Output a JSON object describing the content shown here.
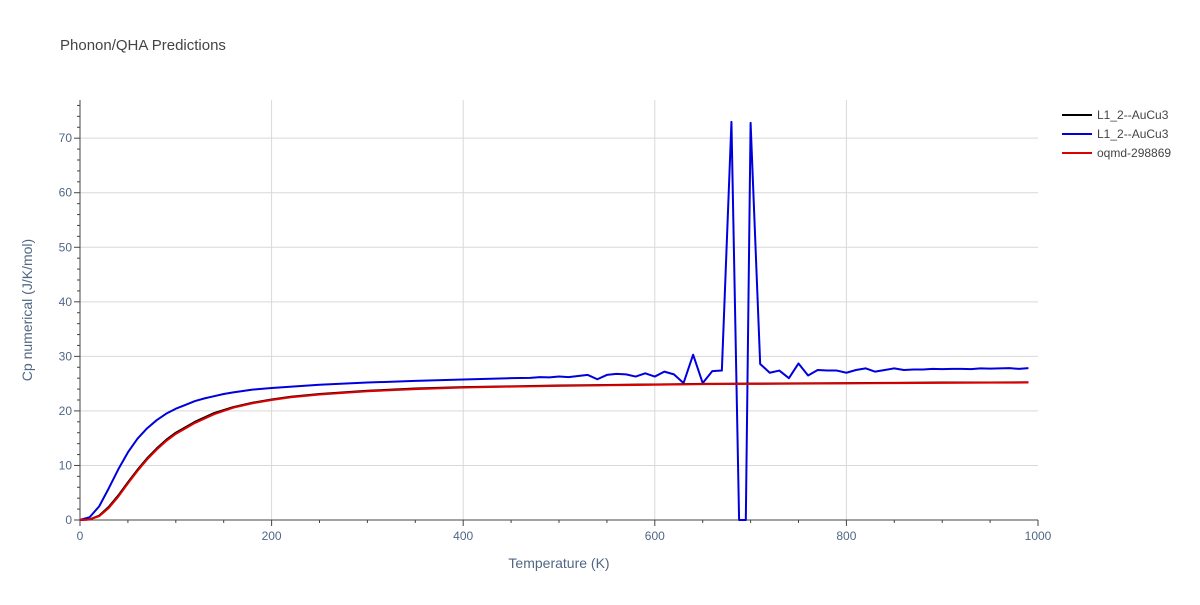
{
  "chart_data": {
    "type": "line",
    "title": "Phonon/QHA Predictions",
    "xlabel": "Temperature (K)",
    "ylabel": "Cp numerical (J/K/mol)",
    "xlim": [
      0,
      1000
    ],
    "ylim": [
      0,
      77
    ],
    "x_ticks": [
      0,
      200,
      400,
      600,
      800,
      1000
    ],
    "y_ticks": [
      0,
      10,
      20,
      30,
      40,
      50,
      60,
      70
    ],
    "grid": true,
    "legend_position": "top-right",
    "series": [
      {
        "name": "L1_2--AuCu3",
        "color": "#000000",
        "x": [
          0,
          10,
          20,
          30,
          40,
          50,
          60,
          70,
          80,
          90,
          100,
          120,
          140,
          160,
          180,
          200,
          220,
          250,
          300,
          350,
          400,
          450,
          500,
          550,
          600,
          650,
          700,
          750,
          800,
          850,
          900,
          950,
          990
        ],
        "y": [
          0,
          0.1,
          0.8,
          2.4,
          4.5,
          6.9,
          9.2,
          11.3,
          13.1,
          14.7,
          16.0,
          18.0,
          19.6,
          20.7,
          21.5,
          22.1,
          22.6,
          23.1,
          23.7,
          24.1,
          24.35,
          24.5,
          24.65,
          24.75,
          24.85,
          24.95,
          25.0,
          25.05,
          25.1,
          25.15,
          25.2,
          25.22,
          25.25
        ]
      },
      {
        "name": "L1_2--AuCu3",
        "color": "#0000dd",
        "x": [
          0,
          10,
          20,
          30,
          40,
          50,
          60,
          70,
          80,
          90,
          100,
          110,
          120,
          130,
          140,
          150,
          160,
          180,
          200,
          250,
          300,
          350,
          400,
          450,
          470,
          480,
          490,
          500,
          510,
          520,
          530,
          540,
          550,
          560,
          570,
          580,
          590,
          600,
          610,
          620,
          630,
          640,
          650,
          660,
          670,
          680,
          688,
          695,
          700,
          710,
          720,
          730,
          740,
          750,
          760,
          770,
          780,
          790,
          800,
          810,
          820,
          830,
          840,
          850,
          860,
          870,
          880,
          890,
          900,
          910,
          920,
          930,
          940,
          950,
          960,
          970,
          980,
          990
        ],
        "y": [
          0,
          0.5,
          2.5,
          5.8,
          9.3,
          12.4,
          14.9,
          16.8,
          18.3,
          19.5,
          20.4,
          21.1,
          21.8,
          22.3,
          22.7,
          23.1,
          23.4,
          23.9,
          24.2,
          24.8,
          25.2,
          25.5,
          25.75,
          26.0,
          26.05,
          26.2,
          26.15,
          26.3,
          26.2,
          26.4,
          26.6,
          25.8,
          26.6,
          26.8,
          26.7,
          26.3,
          26.9,
          26.3,
          27.2,
          26.7,
          25.1,
          30.3,
          25.1,
          27.3,
          27.4,
          73.0,
          0,
          0,
          72.8,
          28.6,
          27.0,
          27.4,
          26.0,
          28.7,
          26.5,
          27.5,
          27.4,
          27.4,
          27.0,
          27.5,
          27.8,
          27.2,
          27.5,
          27.8,
          27.5,
          27.6,
          27.6,
          27.7,
          27.65,
          27.7,
          27.7,
          27.65,
          27.8,
          27.75,
          27.8,
          27.85,
          27.7,
          27.85
        ]
      },
      {
        "name": "oqmd-298869",
        "color": "#dd0000",
        "x": [
          0,
          10,
          20,
          30,
          40,
          50,
          60,
          70,
          80,
          90,
          100,
          120,
          140,
          160,
          180,
          200,
          220,
          250,
          300,
          350,
          400,
          450,
          500,
          550,
          600,
          650,
          700,
          750,
          800,
          850,
          900,
          950,
          990
        ],
        "y": [
          0,
          0.1,
          0.7,
          2.2,
          4.3,
          6.7,
          9.0,
          11.1,
          12.9,
          14.5,
          15.8,
          17.8,
          19.4,
          20.6,
          21.4,
          22.0,
          22.5,
          23.0,
          23.6,
          24.0,
          24.3,
          24.45,
          24.6,
          24.7,
          24.8,
          24.9,
          24.95,
          25.0,
          25.05,
          25.1,
          25.15,
          25.18,
          25.2
        ]
      }
    ]
  }
}
